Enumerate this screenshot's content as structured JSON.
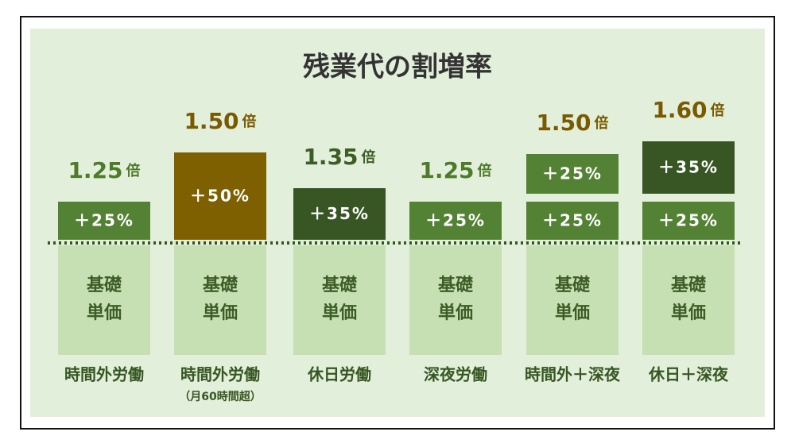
{
  "title": "残業代の割増率",
  "columns": [
    {
      "multiplier": "1.25",
      "unit": "倍",
      "multiplier_color": "#4f7a2c",
      "segments": [
        {
          "label": "＋25%",
          "color": "#548235"
        }
      ],
      "base": [
        "基礎",
        "単価"
      ],
      "label": "時間外労働"
    },
    {
      "multiplier": "1.50",
      "unit": "倍",
      "multiplier_color": "#7a5a00",
      "segments": [
        {
          "label": "＋50%",
          "color": "#7f6000"
        }
      ],
      "base": [
        "基礎",
        "単価"
      ],
      "label": "時間外労働",
      "note": "（月60時間超）"
    },
    {
      "multiplier": "1.35",
      "unit": "倍",
      "multiplier_color": "#3d5c26",
      "segments": [
        {
          "label": "＋35%",
          "color": "#375623"
        }
      ],
      "base": [
        "基礎",
        "単価"
      ],
      "label": "休日労働"
    },
    {
      "multiplier": "1.25",
      "unit": "倍",
      "multiplier_color": "#4f7a2c",
      "segments": [
        {
          "label": "＋25%",
          "color": "#548235"
        }
      ],
      "base": [
        "基礎",
        "単価"
      ],
      "label": "深夜労働"
    },
    {
      "multiplier": "1.50",
      "unit": "倍",
      "multiplier_color": "#7a5a00",
      "segments": [
        {
          "label": "＋25%",
          "color": "#548235"
        },
        {
          "label": "＋25%",
          "color": "#548235"
        }
      ],
      "base": [
        "基礎",
        "単価"
      ],
      "label": "時間外＋深夜"
    },
    {
      "multiplier": "1.60",
      "unit": "倍",
      "multiplier_color": "#7a5a00",
      "segments": [
        {
          "label": "＋25%",
          "color": "#548235"
        },
        {
          "label": "＋35%",
          "color": "#375623"
        }
      ],
      "base": [
        "基礎",
        "単価"
      ],
      "label": "休日＋深夜"
    }
  ]
}
